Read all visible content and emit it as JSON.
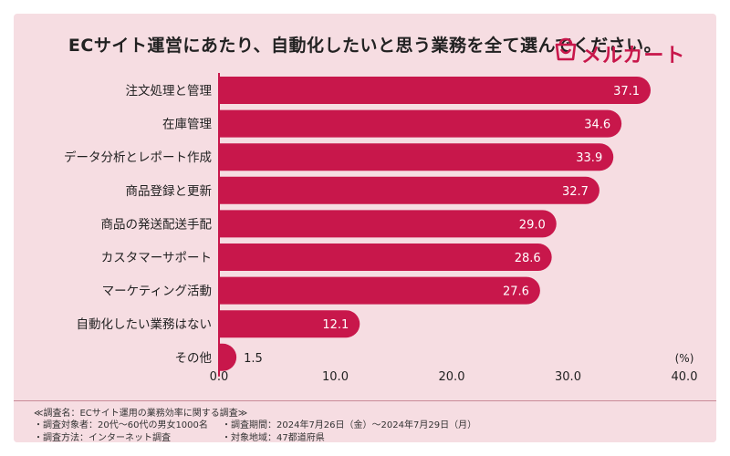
{
  "chart_data": {
    "type": "bar",
    "orientation": "horizontal",
    "title": "ECサイト運営にあたり、自動化したいと思う業務を全て選んでください。",
    "categories": [
      "注文処理と管理",
      "在庫管理",
      "データ分析とレポート作成",
      "商品登録と更新",
      "商品の発送配送手配",
      "カスタマーサポート",
      "マーケティング活動",
      "自動化したい業務はない",
      "その他"
    ],
    "values": [
      37.1,
      34.6,
      33.9,
      32.7,
      29.0,
      28.6,
      27.6,
      12.1,
      1.5
    ],
    "value_labels": [
      "37.1",
      "34.6",
      "33.9",
      "32.7",
      "29.0",
      "28.6",
      "27.6",
      "12.1",
      "1.5"
    ],
    "xlim": [
      0,
      40
    ],
    "xticks": [
      0,
      10,
      20,
      30,
      40
    ],
    "xtick_labels": [
      "0.0",
      "10.0",
      "20.0",
      "30.0",
      "40.0"
    ],
    "unit": "(%)",
    "bar_color": "#c8174b",
    "grid": false
  },
  "footer": {
    "survey_name": "≪調査名：ECサイト運用の業務効率に関する調査≫",
    "subjects": "・調査対象者：20代〜60代の男女1000名",
    "method": "・調査方法：インターネット調査",
    "period": "・調査期間：2024年7月26日（金）〜2024年7月29日（月）",
    "region": "・対象地域：47都道府県"
  },
  "logo": {
    "text": "メルカート",
    "color": "#c8174b",
    "icon": "shopping-bag-smile-icon"
  },
  "colors": {
    "background": "#f6dde2",
    "accent": "#c8174b"
  }
}
